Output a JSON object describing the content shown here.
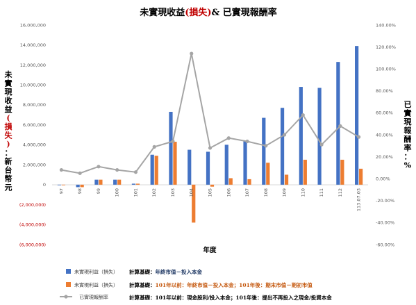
{
  "title": {
    "part1": "未實現收益",
    "part2": "(損失)",
    "part3": "& 已實現報酬率"
  },
  "left_axis": {
    "label_chars": [
      "未",
      "實",
      "現",
      "收",
      "益",
      "(",
      "損",
      "失",
      ")",
      "：",
      "新",
      "台",
      "幣",
      "元"
    ],
    "red_range": [
      5,
      8
    ]
  },
  "right_axis": {
    "label_chars": [
      "已",
      "實",
      "現",
      "報",
      "酬",
      "率",
      "：",
      "%"
    ]
  },
  "legend": {
    "unrealized_a": "未實現利益（損失）",
    "unrealized_b": "未實現利益（損失）",
    "return_rate": "已實現報酬率"
  },
  "notes": {
    "note1_prefix": "計算基礎：",
    "note1_body": "年終市值－投入本金",
    "note2_prefix": "計算基礎：",
    "note2_body": "101年以前：年終市值－投入本金；101年後：期末市值－期初市值",
    "note3_prefix": "計算基礎：",
    "note3_body": "101年以前：現金股利/投入本金；101年後：提出不再投入之現金/投資本金"
  },
  "colors": {
    "blue": "#4472c4",
    "orange": "#ed7d31",
    "gray": "#a5a5a5",
    "negative_tick": "#c00000"
  },
  "chart_data": {
    "type": "bar",
    "xlabel": "年度",
    "categories": [
      "97",
      "98",
      "99",
      "100",
      "101",
      "102",
      "103",
      "104",
      "105",
      "106",
      "107",
      "108",
      "109",
      "110",
      "111",
      "112",
      "113.07.03"
    ],
    "left_ylim": [
      -6000000,
      16000000
    ],
    "left_ticks": [
      "16,000,000",
      "14,000,000",
      "12,000,000",
      "10,000,000",
      "8,000,000",
      "6,000,000",
      "4,000,000",
      "2,000,000",
      "0",
      "(2,000,000)",
      "(4,000,000)",
      "(6,000,000)"
    ],
    "right_ylim": [
      -60,
      140
    ],
    "right_ticks": [
      "140.00%",
      "120.00%",
      "100.00%",
      "80.00%",
      "60.00%",
      "40.00%",
      "20.00%",
      "0.00%",
      "-20.00%",
      "-40.00%",
      "-60.00%"
    ],
    "grid": false,
    "series": [
      {
        "name": "未實現利益（損失）",
        "axis": "left",
        "type": "bar",
        "values": [
          -50000,
          -250000,
          500000,
          500000,
          100000,
          3000000,
          7300000,
          3500000,
          3300000,
          4000000,
          4400000,
          6700000,
          7700000,
          9800000,
          9700000,
          12300000,
          13900000
        ]
      },
      {
        "name": "未實現利益（損失）",
        "axis": "left",
        "type": "bar",
        "values": [
          -50000,
          -250000,
          500000,
          500000,
          100000,
          2900000,
          4300000,
          -3800000,
          -200000,
          650000,
          550000,
          2200000,
          1000000,
          2500000,
          0,
          2500000,
          1600000
        ]
      },
      {
        "name": "已實現報酬率",
        "axis": "right",
        "type": "line",
        "values": [
          8,
          5,
          11,
          8,
          6,
          29,
          34,
          114,
          28,
          37,
          34,
          30,
          40,
          58,
          31,
          48,
          38
        ]
      }
    ]
  }
}
